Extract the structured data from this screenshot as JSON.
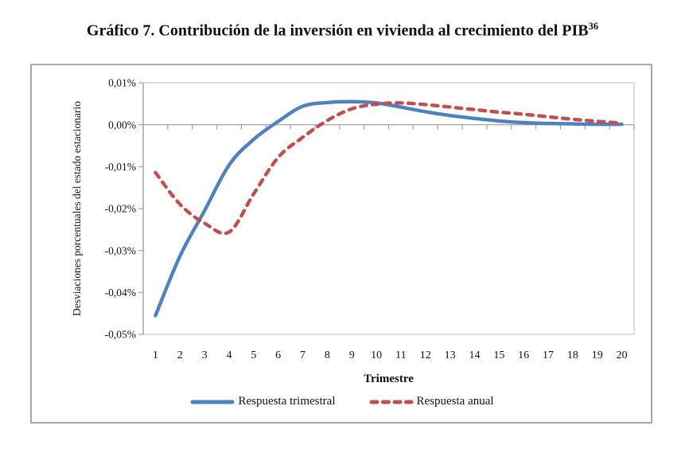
{
  "title": {
    "text": "Gráfico 7. Contribución de la inversión en vivienda al crecimiento del PIB",
    "superscript": "36"
  },
  "chart_data": {
    "type": "line",
    "x": [
      1,
      2,
      3,
      4,
      5,
      6,
      7,
      8,
      9,
      10,
      11,
      12,
      13,
      14,
      15,
      16,
      17,
      18,
      19,
      20
    ],
    "series": [
      {
        "name": "Respuesta trimestral",
        "color": "#4F81BD",
        "style": "solid",
        "values": [
          -0.0455,
          -0.0313,
          -0.0205,
          -0.0096,
          -0.0035,
          0.0008,
          0.0044,
          0.0053,
          0.0055,
          0.0052,
          0.0042,
          0.0031,
          0.0022,
          0.0015,
          0.0009,
          0.0005,
          0.0003,
          0.0002,
          0.0001,
          0.0001
        ]
      },
      {
        "name": "Respuesta anual",
        "color": "#C0504D",
        "style": "dashed",
        "values": [
          -0.0114,
          -0.019,
          -0.0235,
          -0.0256,
          -0.0165,
          -0.0078,
          -0.003,
          0.001,
          0.0038,
          0.0049,
          0.0052,
          0.0048,
          0.0042,
          0.0036,
          0.003,
          0.0025,
          0.0019,
          0.0013,
          0.0008,
          0.0004
        ]
      }
    ],
    "xlabel": "Trimestre",
    "ylabel": "Desviaciones porcentuales del estado estacionario",
    "y_ticks": [
      "0,01%",
      "0,00%",
      "-0,01%",
      "-0,02%",
      "-0,03%",
      "-0,04%",
      "-0,05%"
    ],
    "ylim": [
      -0.05,
      0.01
    ],
    "units": "percent deviation",
    "grid": "zero-line-only",
    "legend_position": "bottom"
  },
  "colors": {
    "axis_line": "#9b9b9b",
    "plot_border": "#cdd0d2",
    "frame_border": "#a8a8a8",
    "text": "#141414"
  }
}
